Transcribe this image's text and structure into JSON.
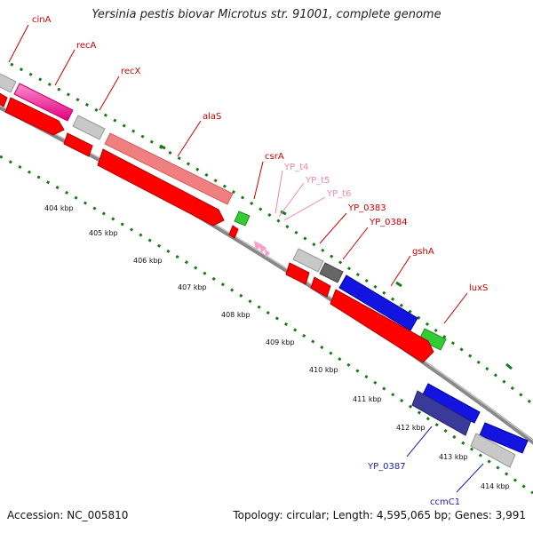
{
  "title": "Yersinia pestis biovar Microtus str. 91001, complete genome",
  "footer": {
    "accession": "Accession: NC_005810",
    "summary": "Topology: circular; Length: 4,595,065 bp; Genes: 3,991"
  },
  "colors": {
    "backbone": "#888888",
    "tick": "#1a7a1a",
    "label_red": "#cc0000",
    "label_pink": "#ee88aa",
    "label_blue": "#1f1fa8"
  },
  "kbp_ticks": [
    "404 kbp",
    "405 kbp",
    "406 kbp",
    "407 kbp",
    "408 kbp",
    "409 kbp",
    "410 kbp",
    "411 kbp",
    "412 kbp",
    "413 kbp",
    "414 kbp"
  ],
  "gene_labels": [
    {
      "id": "cinA",
      "text": "cinA",
      "color": "red"
    },
    {
      "id": "recA",
      "text": "recA",
      "color": "red"
    },
    {
      "id": "recX",
      "text": "recX",
      "color": "red"
    },
    {
      "id": "alaS",
      "text": "alaS",
      "color": "red"
    },
    {
      "id": "csrA",
      "text": "csrA",
      "color": "red"
    },
    {
      "id": "YP_t4",
      "text": "YP_t4",
      "color": "pink"
    },
    {
      "id": "YP_t5",
      "text": "YP_t5",
      "color": "pink"
    },
    {
      "id": "YP_t6",
      "text": "YP_t6",
      "color": "pink"
    },
    {
      "id": "YP_0383",
      "text": "YP_0383",
      "color": "red"
    },
    {
      "id": "YP_0384",
      "text": "YP_0384",
      "color": "red"
    },
    {
      "id": "gshA",
      "text": "gshA",
      "color": "red"
    },
    {
      "id": "luxS",
      "text": "luxS",
      "color": "red"
    },
    {
      "id": "YP_0387",
      "text": "YP_0387",
      "color": "blue"
    },
    {
      "id": "ccmC1",
      "text": "ccmC1",
      "color": "blue"
    }
  ]
}
